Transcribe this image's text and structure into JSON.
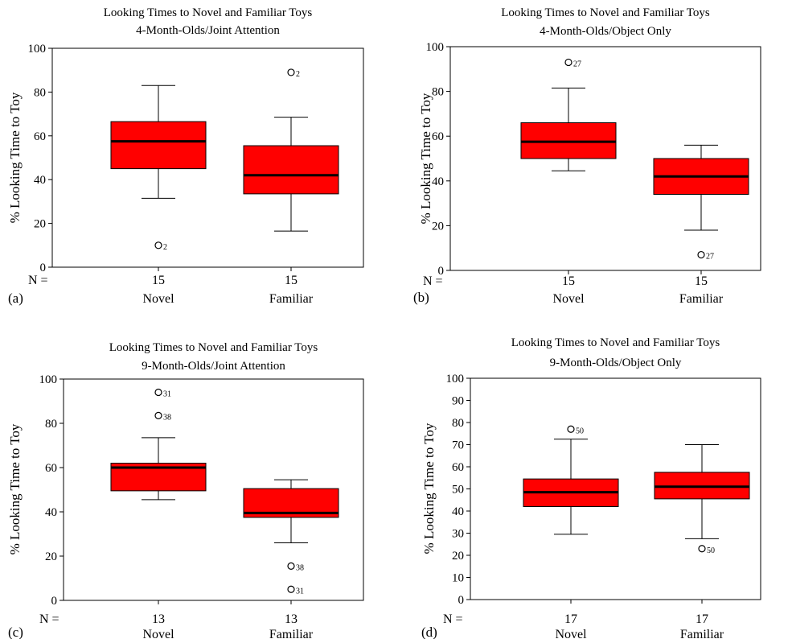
{
  "chart_data": [
    {
      "type": "boxplot",
      "panel_label": "(a)",
      "title": "Looking Times to Novel and Familiar Toys",
      "subtitle": "4-Month-Olds/Joint Attention",
      "ylabel": "% Looking Time to Toy",
      "ylim": [
        0,
        100
      ],
      "yticks": [
        0,
        20,
        40,
        60,
        80,
        100
      ],
      "n_label": "N =",
      "groups": [
        {
          "category": "Novel",
          "n": "15",
          "whisker_low": 31.5,
          "q1": 45,
          "median": 57.5,
          "q3": 66.5,
          "whisker_high": 83,
          "outliers": [
            {
              "value": 10,
              "label": "2"
            }
          ]
        },
        {
          "category": "Familiar",
          "n": "15",
          "whisker_low": 16.5,
          "q1": 33.5,
          "median": 42,
          "q3": 55.5,
          "whisker_high": 68.5,
          "outliers": [
            {
              "value": 89,
              "label": "2"
            }
          ]
        }
      ]
    },
    {
      "type": "boxplot",
      "panel_label": "(b)",
      "title": "Looking Times to Novel and Familiar Toys",
      "subtitle": "4-Month-Olds/Object Only",
      "ylabel": "% Looking Time to Toy",
      "ylim": [
        0,
        100
      ],
      "yticks": [
        0,
        20,
        40,
        60,
        80,
        100
      ],
      "n_label": "N =",
      "groups": [
        {
          "category": "Novel",
          "n": "15",
          "whisker_low": 44.5,
          "q1": 50,
          "median": 57.5,
          "q3": 66,
          "whisker_high": 81.5,
          "outliers": [
            {
              "value": 93,
              "label": "27"
            }
          ]
        },
        {
          "category": "Familiar",
          "n": "15",
          "whisker_low": 18,
          "q1": 34,
          "median": 42,
          "q3": 50,
          "whisker_high": 56,
          "outliers": [
            {
              "value": 7,
              "label": "27"
            }
          ]
        }
      ]
    },
    {
      "type": "boxplot",
      "panel_label": "(c)",
      "title": "Looking Times to Novel and Familiar Toys",
      "subtitle": "9-Month-Olds/Joint Attention",
      "ylabel": "% Looking Time to Toy",
      "ylim": [
        0,
        100
      ],
      "yticks": [
        0,
        20,
        40,
        60,
        80,
        100
      ],
      "n_label": "N =",
      "groups": [
        {
          "category": "Novel",
          "n": "13",
          "whisker_low": 45.5,
          "q1": 49.5,
          "median": 60,
          "q3": 62,
          "whisker_high": 73.5,
          "outliers": [
            {
              "value": 94,
              "label": "31"
            },
            {
              "value": 83.5,
              "label": "38"
            }
          ]
        },
        {
          "category": "Familiar",
          "n": "13",
          "whisker_low": 26,
          "q1": 37.5,
          "median": 39.5,
          "q3": 50.5,
          "whisker_high": 54.5,
          "outliers": [
            {
              "value": 15.5,
              "label": "38"
            },
            {
              "value": 5,
              "label": "31"
            }
          ]
        }
      ]
    },
    {
      "type": "boxplot",
      "panel_label": "(d)",
      "title": "Looking Times to Novel and Familiar Toys",
      "subtitle": "9-Month-Olds/Object Only",
      "ylabel": "% Looking Time to Toy",
      "ylim": [
        0,
        100
      ],
      "yticks": [
        0,
        10,
        20,
        30,
        40,
        50,
        60,
        70,
        80,
        90,
        100
      ],
      "n_label": "N =",
      "groups": [
        {
          "category": "Novel",
          "n": "17",
          "whisker_low": 29.5,
          "q1": 42,
          "median": 48.5,
          "q3": 54.5,
          "whisker_high": 72.5,
          "outliers": [
            {
              "value": 77,
              "label": "50"
            }
          ]
        },
        {
          "category": "Familiar",
          "n": "17",
          "whisker_low": 27.5,
          "q1": 45.5,
          "median": 51,
          "q3": 57.5,
          "whisker_high": 70,
          "outliers": [
            {
              "value": 23,
              "label": "50"
            }
          ]
        }
      ]
    }
  ],
  "colors": {
    "box_fill": "#ff0000",
    "stroke": "#000000",
    "background": "#ffffff"
  }
}
